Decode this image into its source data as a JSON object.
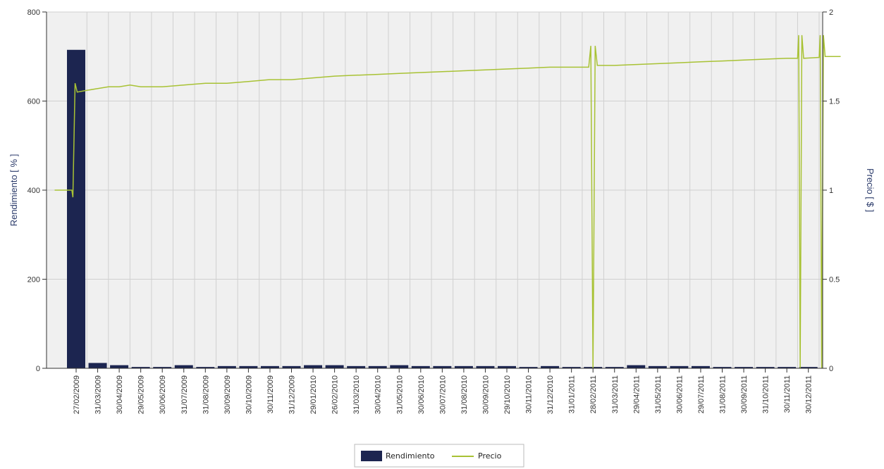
{
  "chart_data": {
    "type": "bar+line",
    "categories": [
      "27/02/2009",
      "31/03/2009",
      "30/04/2009",
      "29/05/2009",
      "30/06/2009",
      "31/07/2009",
      "31/08/2009",
      "30/09/2009",
      "30/10/2009",
      "30/11/2009",
      "31/12/2009",
      "29/01/2010",
      "26/02/2010",
      "31/03/2010",
      "30/04/2010",
      "31/05/2010",
      "30/06/2010",
      "30/07/2010",
      "31/08/2010",
      "30/09/2010",
      "29/10/2010",
      "30/11/2010",
      "31/12/2010",
      "31/01/2011",
      "28/02/2011",
      "31/03/2011",
      "29/04/2011",
      "31/05/2011",
      "30/06/2011",
      "29/07/2011",
      "31/08/2011",
      "30/09/2011",
      "31/10/2011",
      "30/11/2011",
      "30/12/2011"
    ],
    "series": [
      {
        "name": "Rendimiento",
        "type": "bar",
        "axis": "left",
        "color": "#1c2550",
        "values": [
          715,
          12,
          7,
          3,
          3,
          7,
          3,
          5,
          5,
          5,
          5,
          7,
          7,
          5,
          5,
          7,
          5,
          5,
          5,
          5,
          5,
          3,
          5,
          3,
          3,
          3,
          7,
          5,
          5,
          5,
          3,
          3,
          3,
          3,
          3
        ]
      },
      {
        "name": "Precio",
        "type": "line",
        "axis": "right",
        "color": "#a8c234",
        "points": [
          [
            -1.0,
            1.0
          ],
          [
            -0.2,
            1.0
          ],
          [
            -0.15,
            0.96
          ],
          [
            -0.05,
            1.6
          ],
          [
            0.05,
            1.55
          ],
          [
            0.5,
            1.56
          ],
          [
            1.0,
            1.57
          ],
          [
            1.5,
            1.58
          ],
          [
            2.0,
            1.58
          ],
          [
            2.5,
            1.59
          ],
          [
            3.0,
            1.58
          ],
          [
            4.0,
            1.58
          ],
          [
            5.0,
            1.59
          ],
          [
            6.0,
            1.6
          ],
          [
            7.0,
            1.6
          ],
          [
            8.0,
            1.61
          ],
          [
            9.0,
            1.62
          ],
          [
            10.0,
            1.62
          ],
          [
            11.0,
            1.63
          ],
          [
            12.0,
            1.64
          ],
          [
            13.0,
            1.645
          ],
          [
            14.0,
            1.65
          ],
          [
            15.0,
            1.655
          ],
          [
            16.0,
            1.66
          ],
          [
            17.0,
            1.665
          ],
          [
            18.0,
            1.67
          ],
          [
            19.0,
            1.675
          ],
          [
            20.0,
            1.68
          ],
          [
            21.0,
            1.685
          ],
          [
            22.0,
            1.69
          ],
          [
            23.0,
            1.69
          ],
          [
            23.8,
            1.69
          ],
          [
            23.9,
            1.81
          ],
          [
            24.0,
            0.0
          ],
          [
            24.1,
            1.81
          ],
          [
            24.2,
            1.7
          ],
          [
            25.0,
            1.7
          ],
          [
            26.0,
            1.705
          ],
          [
            27.0,
            1.71
          ],
          [
            28.0,
            1.715
          ],
          [
            29.0,
            1.72
          ],
          [
            30.0,
            1.725
          ],
          [
            31.0,
            1.73
          ],
          [
            32.0,
            1.735
          ],
          [
            33.0,
            1.74
          ],
          [
            33.5,
            1.74
          ],
          [
            33.55,
            1.87
          ],
          [
            33.62,
            0.0
          ],
          [
            33.7,
            1.87
          ],
          [
            33.78,
            1.74
          ],
          [
            34.5,
            1.745
          ],
          [
            34.55,
            1.87
          ],
          [
            34.62,
            0.0
          ],
          [
            34.7,
            1.87
          ],
          [
            34.78,
            1.75
          ],
          [
            35.5,
            1.75
          ]
        ]
      }
    ],
    "ylabel": "Rendimiento  [ % ]",
    "ylabel_right": "Precio  [ $ ]",
    "ylim": [
      0,
      800
    ],
    "ylim_right": [
      0,
      2
    ],
    "yticks": [
      "0",
      "200",
      "400",
      "600",
      "800"
    ],
    "yticks_right": [
      "0",
      "0.5",
      "1",
      "1.5",
      "2"
    ],
    "grid": true,
    "legend_position": "bottom-center",
    "legend": [
      {
        "label": "Rendimiento",
        "swatch": "bar",
        "color": "#1c2550"
      },
      {
        "label": "Precio",
        "swatch": "line",
        "color": "#a8c234"
      }
    ],
    "colors": {
      "plot_background": "#f0f0f0",
      "grid": "#d0d0d0",
      "axis": "#333333",
      "axis_title": "#2a3a6a"
    }
  }
}
